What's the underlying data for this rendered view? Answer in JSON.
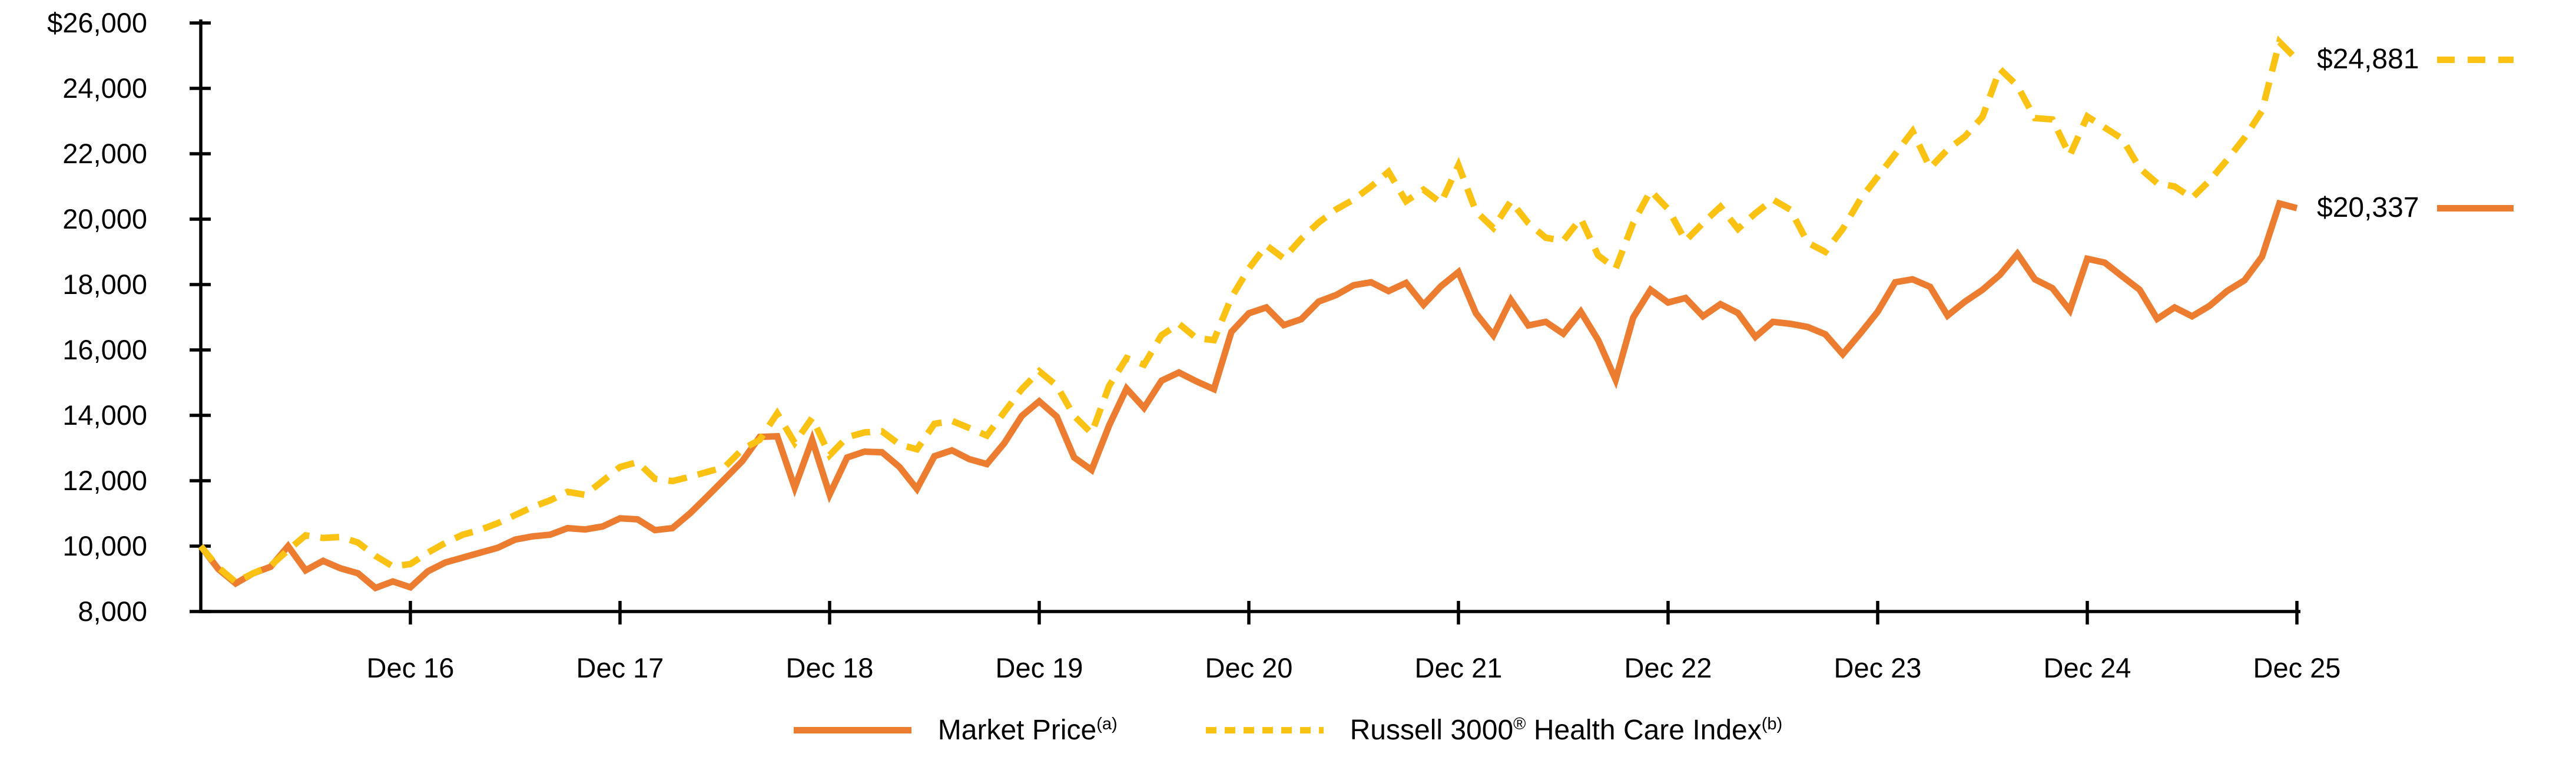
{
  "chart_data": {
    "type": "line",
    "title": "",
    "x_axis": {
      "tick_labels": [
        "Dec 16",
        "Dec 17",
        "Dec 18",
        "Dec 19",
        "Dec 20",
        "Dec 21",
        "Dec 22",
        "Dec 23",
        "Dec 24",
        "Dec 25"
      ],
      "points_per_tick": 12,
      "n_points": 121,
      "start_point": "Dec 15 (unlabeled, at axis origin)"
    },
    "y_axis": {
      "ylim": [
        8000,
        26000
      ],
      "tick_values": [
        26000,
        24000,
        22000,
        20000,
        18000,
        16000,
        14000,
        12000,
        10000,
        8000
      ],
      "tick_labels": [
        "$26,000",
        "24,000",
        "22,000",
        "20,000",
        "18,000",
        "16,000",
        "14,000",
        "12,000",
        "10,000",
        "8,000"
      ]
    },
    "grid": false,
    "legend_position": "bottom",
    "series": [
      {
        "name": "Market Price",
        "superscript": "(a)",
        "color": "#EC7C30",
        "style": "solid",
        "end_label": "$20,337",
        "end_value": 20337,
        "values": [
          10000,
          9300,
          8860,
          9170,
          9370,
          10000,
          9260,
          9550,
          9320,
          9170,
          8720,
          8920,
          8740,
          9230,
          9500,
          9650,
          9800,
          9950,
          10200,
          10300,
          10350,
          10550,
          10510,
          10600,
          10850,
          10820,
          10490,
          10550,
          11000,
          11520,
          12060,
          12600,
          13340,
          13360,
          11790,
          13250,
          11580,
          12710,
          12890,
          12870,
          12420,
          11750,
          12750,
          12930,
          12660,
          12510,
          13150,
          13980,
          14430,
          13960,
          12710,
          12330,
          13690,
          14820,
          14230,
          15060,
          15310,
          15040,
          14800,
          16550,
          17120,
          17300,
          16760,
          16940,
          17480,
          17680,
          17980,
          18070,
          17800,
          18050,
          17380,
          17950,
          18380,
          17120,
          16450,
          17530,
          16750,
          16860,
          16500,
          17170,
          16300,
          15090,
          16990,
          17840,
          17450,
          17590,
          17030,
          17400,
          17130,
          16400,
          16860,
          16800,
          16700,
          16480,
          15870,
          16500,
          17170,
          18070,
          18160,
          17930,
          17050,
          17480,
          17840,
          18300,
          18940,
          18160,
          17890,
          17210,
          18790,
          18670,
          18250,
          17840,
          16950,
          17300,
          17030,
          17350,
          17800,
          18130,
          18850,
          20480,
          20337
        ]
      },
      {
        "name": "Russell 3000® Health Care Index",
        "superscript": "(b)",
        "color": "#FAC213",
        "style": "dashed",
        "end_label": "$24,881",
        "end_value": 24881,
        "values": [
          10000,
          9350,
          8900,
          9170,
          9400,
          9880,
          10330,
          10250,
          10280,
          10110,
          9700,
          9380,
          9450,
          9800,
          10100,
          10350,
          10500,
          10700,
          10950,
          11200,
          11400,
          11660,
          11570,
          11990,
          12420,
          12570,
          12060,
          11990,
          12120,
          12270,
          12420,
          12960,
          13250,
          14060,
          13160,
          13920,
          12780,
          13330,
          13480,
          13510,
          13110,
          12960,
          13740,
          13830,
          13610,
          13380,
          14100,
          14800,
          15350,
          14910,
          13980,
          13450,
          14900,
          15750,
          15550,
          16450,
          16800,
          16360,
          16300,
          17600,
          18490,
          19200,
          18800,
          19400,
          19900,
          20300,
          20600,
          21000,
          21450,
          20550,
          20900,
          20500,
          21650,
          20240,
          19730,
          20550,
          19880,
          19430,
          19340,
          20020,
          18890,
          18490,
          19880,
          20870,
          20310,
          19340,
          19880,
          20380,
          19700,
          20180,
          20600,
          20290,
          19280,
          19000,
          19700,
          20600,
          21300,
          21990,
          22690,
          21570,
          22130,
          22530,
          23130,
          24590,
          24080,
          23090,
          23050,
          21950,
          23140,
          22800,
          22460,
          21560,
          21100,
          21000,
          20650,
          21180,
          21810,
          22490,
          23310,
          25420,
          24881
        ]
      }
    ]
  },
  "end_labels": {
    "index_line": "$24,881",
    "market_price_line": "$20,337"
  },
  "legend": {
    "market_price": {
      "label": "Market Price",
      "sup": "(a)"
    },
    "index": {
      "label_pre": "Russell 3000",
      "sup_reg": "®",
      "label_post": " Health Care Index",
      "sup": "(b)"
    }
  }
}
